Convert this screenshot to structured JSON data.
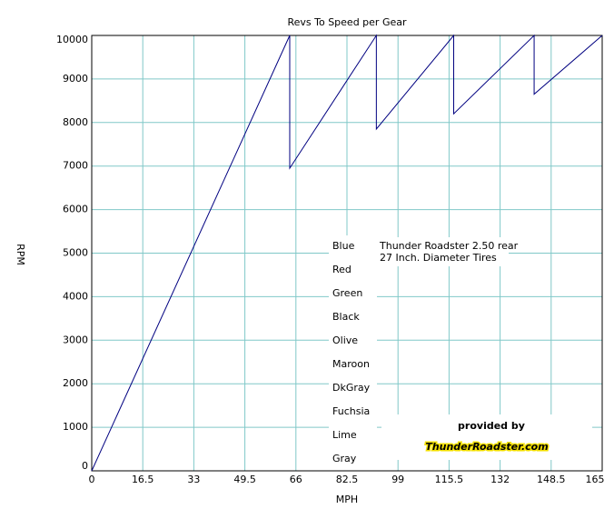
{
  "chart_data": {
    "type": "line",
    "title": "Revs To Speed per Gear",
    "x_label": "MPH",
    "y_label": "RPM",
    "xlim": [
      0,
      165
    ],
    "xticks": [
      0,
      16.5,
      33,
      49.5,
      66,
      82.5,
      99,
      115.5,
      132,
      148.5,
      165
    ],
    "ylim": [
      0,
      10000
    ],
    "yticks": [
      0,
      1000,
      2000,
      3000,
      4000,
      5000,
      6000,
      7000,
      8000,
      9000,
      10000
    ],
    "grid": true,
    "grid_color": "#80c8c8",
    "series": [
      {
        "color": "#000080",
        "x": [
          0,
          64,
          64,
          92,
          92,
          117,
          117,
          143,
          143,
          165
        ],
        "values": [
          0,
          10000,
          6950,
          10000,
          7850,
          10000,
          8200,
          10000,
          8650,
          10000
        ]
      }
    ],
    "legend_labels": [
      "Blue",
      "Red",
      "Green",
      "Black",
      "Olive",
      "Maroon",
      "DkGray",
      "Fuchsia",
      "Lime",
      "Gray"
    ],
    "annotations": [
      "Thunder Roadster 2.50 rear",
      "27 Inch. Diameter Tires"
    ],
    "credit": "provided by",
    "site": "ThunderRoadster.com"
  }
}
